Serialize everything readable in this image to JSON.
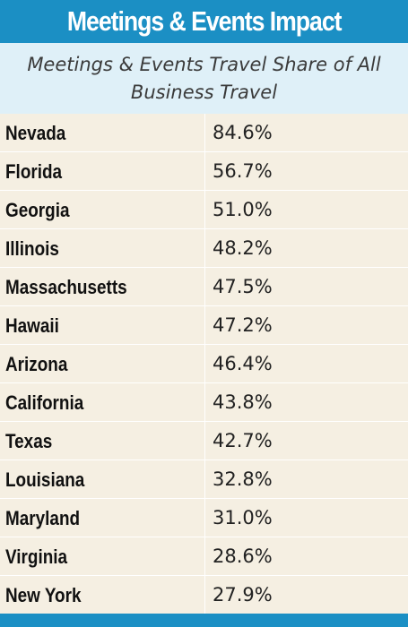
{
  "header": {
    "title": "Meetings & Events Impact",
    "subtitle": "Meetings & Events Travel Share of All Business Travel"
  },
  "colors": {
    "header_blue": "#1b8fc4",
    "subtitle_bg": "#dff0f8",
    "table_bg": "#f5efe2"
  },
  "chart_data": {
    "type": "table",
    "title": "Meetings & Events Impact",
    "subtitle": "Meetings & Events Travel Share of All Business Travel",
    "columns": [
      "",
      ""
    ],
    "rows": [
      {
        "state": "Nevada",
        "value": 84.6,
        "display": "84.6%"
      },
      {
        "state": "Florida",
        "value": 56.7,
        "display": "56.7%"
      },
      {
        "state": "Georgia",
        "value": 51.0,
        "display": "51.0%"
      },
      {
        "state": "Illinois",
        "value": 48.2,
        "display": "48.2%"
      },
      {
        "state": "Massachusetts",
        "value": 47.5,
        "display": "47.5%"
      },
      {
        "state": "Hawaii",
        "value": 47.2,
        "display": "47.2%"
      },
      {
        "state": "Arizona",
        "value": 46.4,
        "display": "46.4%"
      },
      {
        "state": "California",
        "value": 43.8,
        "display": "43.8%"
      },
      {
        "state": "Texas",
        "value": 42.7,
        "display": "42.7%"
      },
      {
        "state": "Louisiana",
        "value": 32.8,
        "display": "32.8%"
      },
      {
        "state": "Maryland",
        "value": 31.0,
        "display": "31.0%"
      },
      {
        "state": "Virginia",
        "value": 28.6,
        "display": "28.6%"
      },
      {
        "state": "New York",
        "value": 27.9,
        "display": "27.9%"
      }
    ]
  }
}
